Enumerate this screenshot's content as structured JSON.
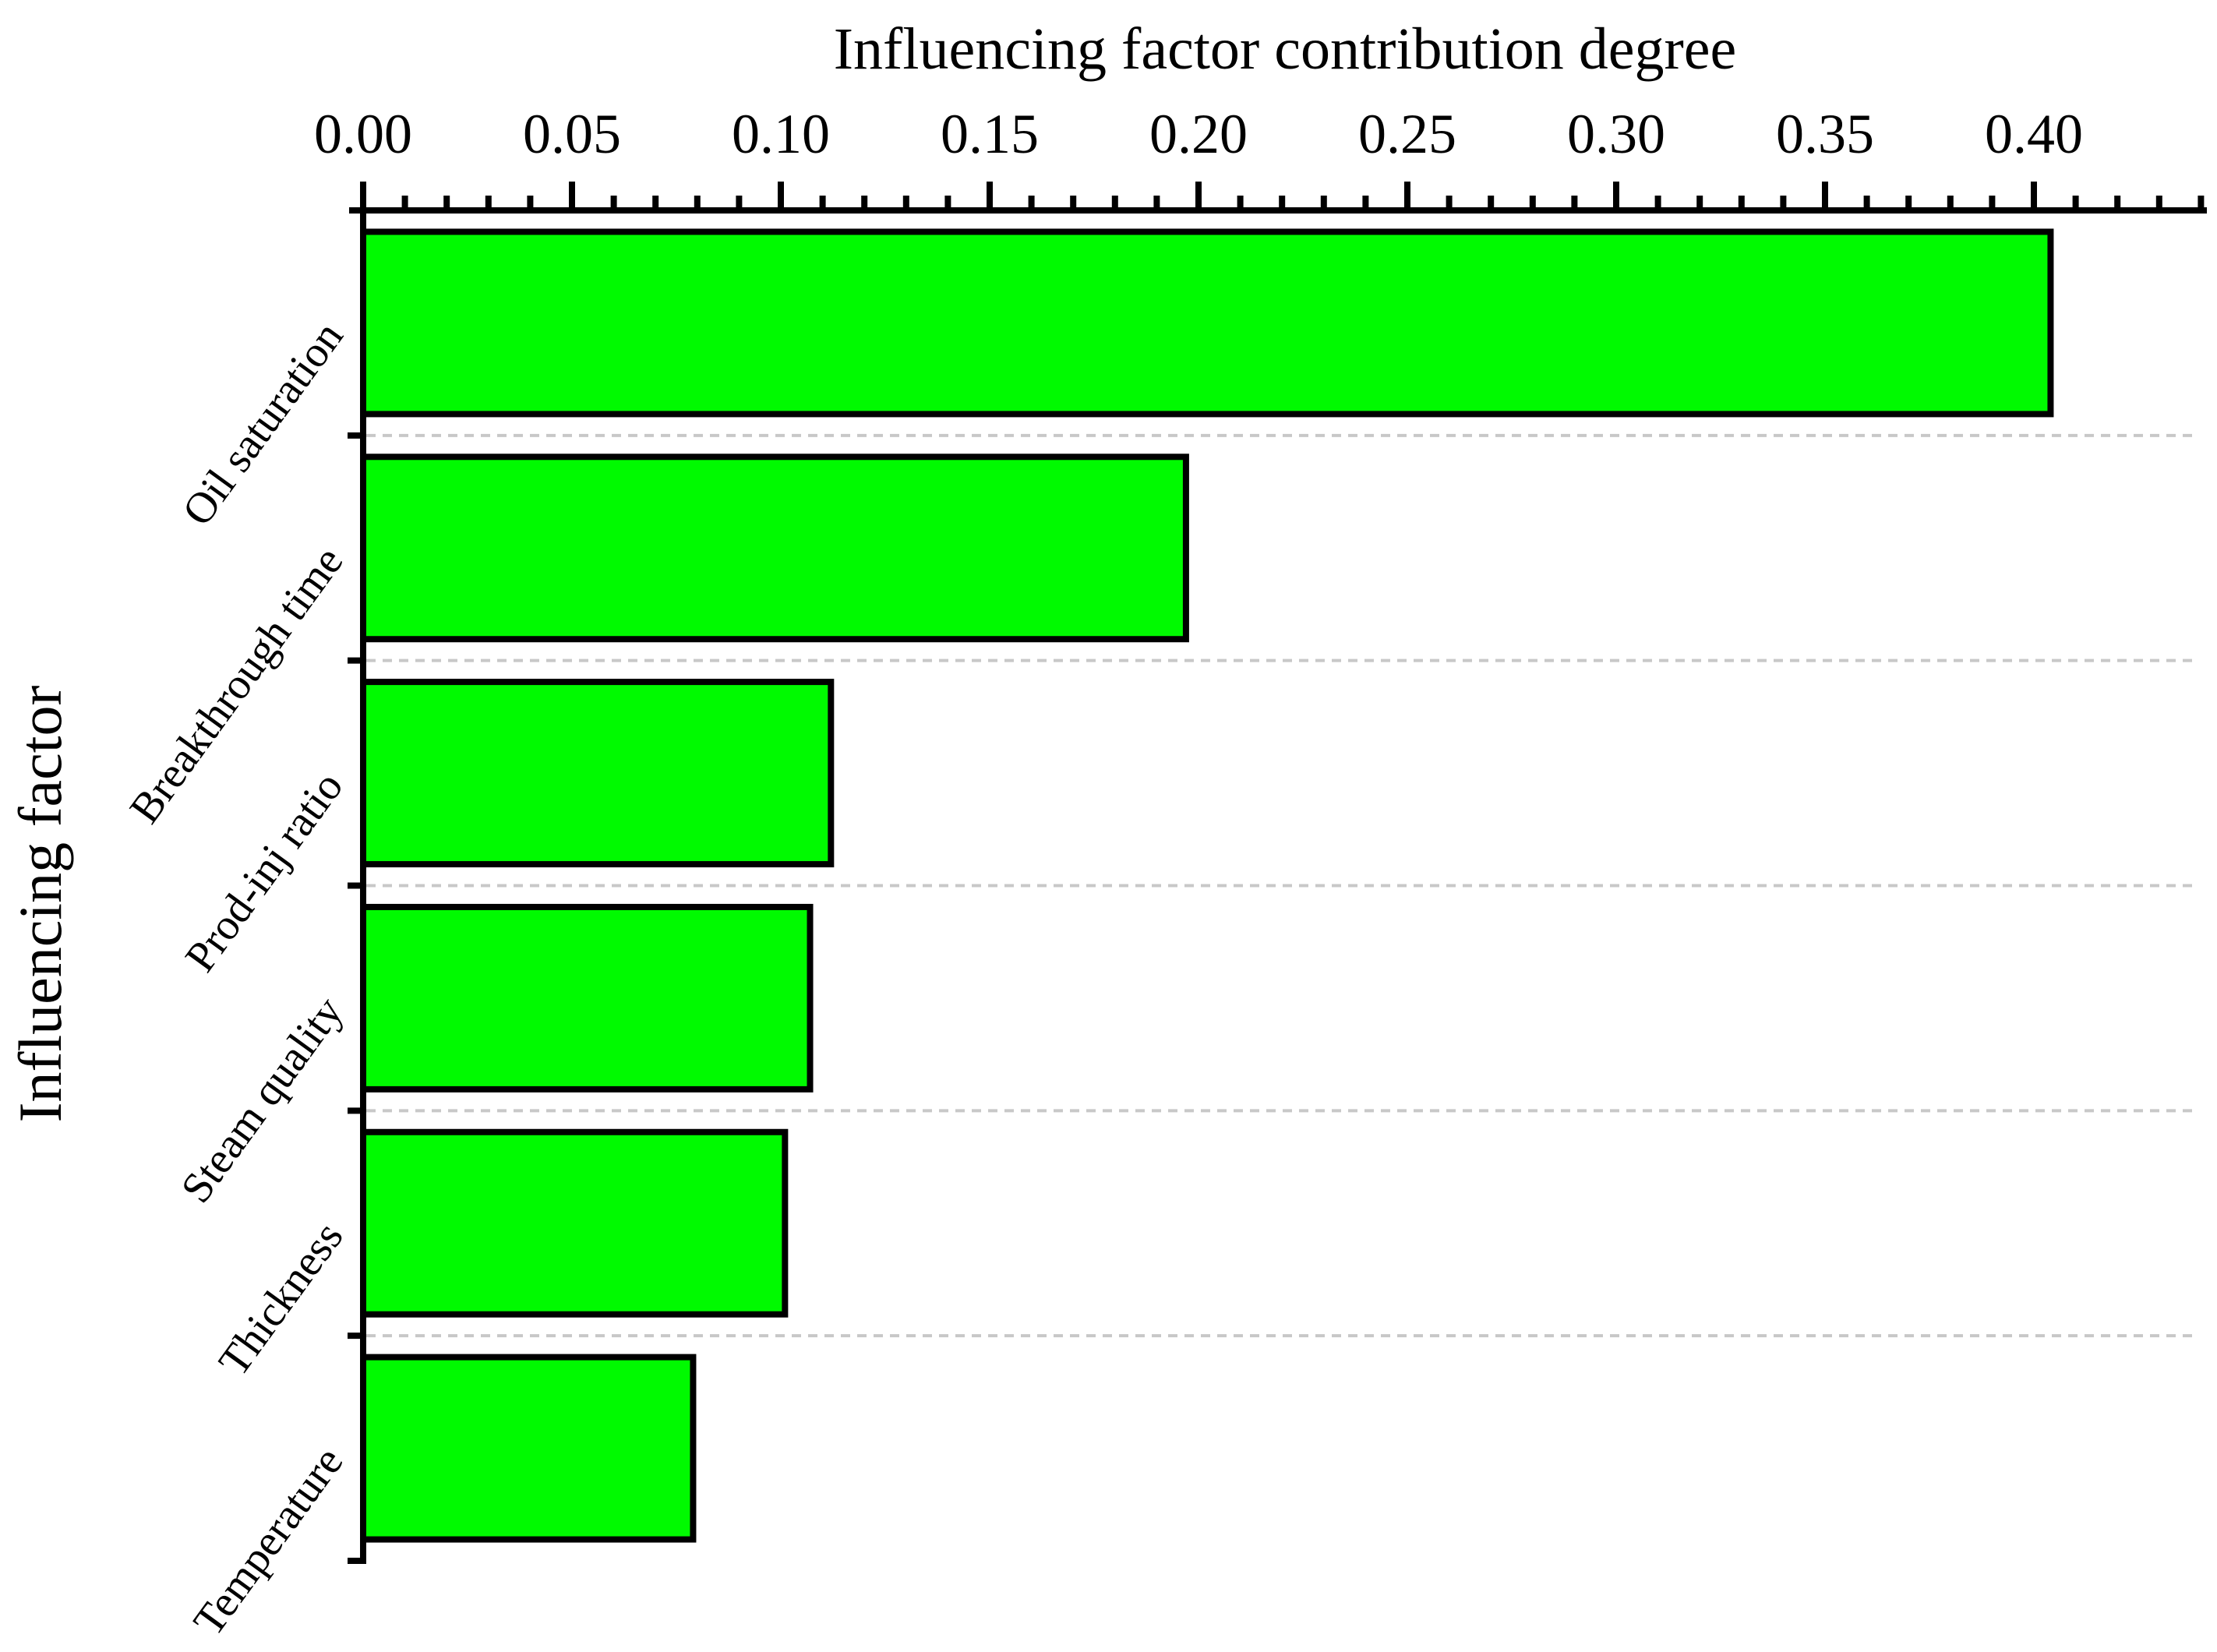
{
  "chart_data": {
    "type": "bar",
    "orientation": "horizontal",
    "title": "Influencing factor contribution degree",
    "xlabel": "Influencing factor contribution degree",
    "ylabel": "Influencing factor",
    "categories": [
      "Oil saturation",
      "Breakthrough time",
      "Prod-inj ratio",
      "Steam quality",
      "Thickness",
      "Temperature"
    ],
    "values": [
      0.404,
      0.197,
      0.112,
      0.107,
      0.101,
      0.079
    ],
    "x_tick_labels": [
      "0.00",
      "0.05",
      "0.10",
      "0.15",
      "0.20",
      "0.25",
      "0.30",
      "0.35",
      "0.40"
    ],
    "x_tick_values": [
      0.0,
      0.05,
      0.1,
      0.15,
      0.2,
      0.25,
      0.3,
      0.35,
      0.4
    ],
    "x_minor_tick_step": 0.01,
    "xlim": [
      0,
      0.4414
    ],
    "axis_position": "top",
    "legend": "none",
    "grid": "dashed-category-separators",
    "colors": {
      "bar_fill": "#00FA00",
      "bar_border": "#000000",
      "axis": "#000000",
      "gridline": "#C8C8C8",
      "background": "#FFFFFF"
    }
  }
}
